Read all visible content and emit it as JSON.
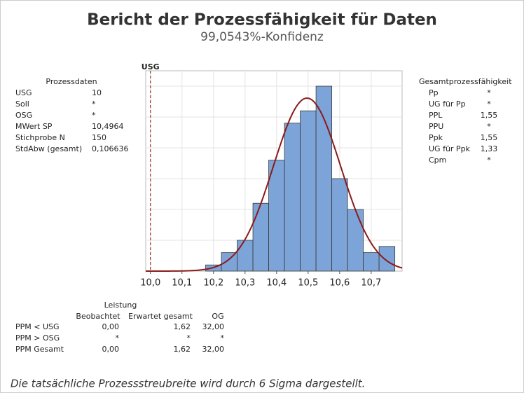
{
  "title": "Bericht der Prozessfähigkeit für Daten",
  "subtitle": "99,0543%-Konfidenz",
  "process_data": {
    "title": "Prozessdaten",
    "rows": [
      [
        "USG",
        "10"
      ],
      [
        "Soll",
        "*"
      ],
      [
        "OSG",
        "*"
      ],
      [
        "MWert SP",
        "10,4964"
      ],
      [
        "Stichprobe N",
        "150"
      ],
      [
        "StdAbw (gesamt)",
        "0,106636"
      ]
    ]
  },
  "capability": {
    "title": "Gesamtprozessfähigkeit",
    "rows": [
      [
        "Pp",
        "*"
      ],
      [
        "UG für Pp",
        "*"
      ],
      [
        "PPL",
        "1,55"
      ],
      [
        "PPU",
        "*"
      ],
      [
        "Ppk",
        "1,55"
      ],
      [
        "UG für Ppk",
        "1,33"
      ],
      [
        "Cpm",
        "*"
      ]
    ]
  },
  "performance": {
    "title": "Leistung",
    "columns": [
      "Beobachtet",
      "Erwartet gesamt",
      "OG"
    ],
    "rows": [
      [
        "PPM < USG",
        "0,00",
        "1,62",
        "32,00"
      ],
      [
        "PPM > OSG",
        "*",
        "*",
        "*"
      ],
      [
        "PPM Gesamt",
        "0,00",
        "1,62",
        "32,00"
      ]
    ]
  },
  "footnote": "Die tatsächliche Prozessstreubreite wird durch 6 Sigma dargestellt.",
  "chart_data": {
    "type": "histogram",
    "bins": [
      10.175,
      10.225,
      10.275,
      10.325,
      10.375,
      10.425,
      10.475,
      10.525,
      10.575,
      10.625,
      10.675,
      10.725,
      10.775
    ],
    "counts": [
      1,
      3,
      5,
      11,
      18,
      24,
      26,
      30,
      15,
      10,
      3,
      4
    ],
    "color": "#7da4d8",
    "edge_color": "#3a3a3a",
    "xlim": [
      9.985,
      10.798
    ],
    "xticks": [
      {
        "value": 10.0,
        "label": "10,0"
      },
      {
        "value": 10.1,
        "label": "10,1"
      },
      {
        "value": 10.2,
        "label": "10,2"
      },
      {
        "value": 10.3,
        "label": "10,3"
      },
      {
        "value": 10.4,
        "label": "10,4"
      },
      {
        "value": 10.5,
        "label": "10,5"
      },
      {
        "value": 10.6,
        "label": "10,6"
      },
      {
        "value": 10.7,
        "label": "10,7"
      }
    ],
    "ylim": [
      0,
      32.5
    ],
    "ygrid": [
      5,
      10,
      15,
      20,
      25,
      30
    ],
    "grid": true,
    "curve": {
      "mean": 10.4964,
      "sd": 0.106636,
      "n": 150,
      "color": "#8b1a1a"
    },
    "reference_lines": [
      {
        "value": 10,
        "label": "USG",
        "color": "#a0332a"
      }
    ]
  }
}
